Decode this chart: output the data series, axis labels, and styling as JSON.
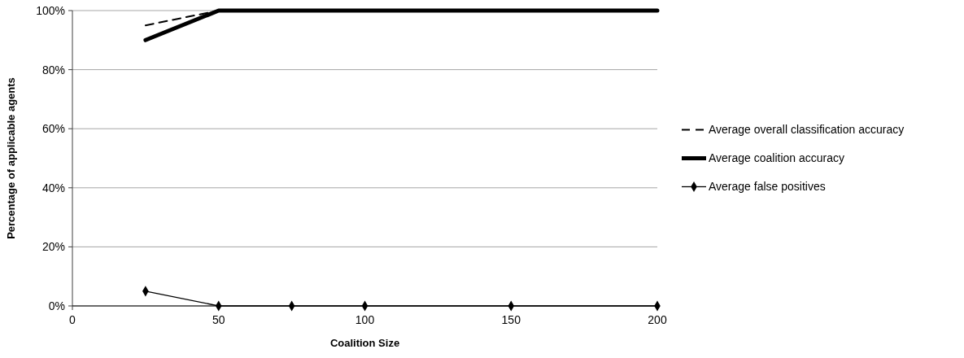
{
  "chart_data": {
    "type": "line",
    "xlabel": "Coalition Size",
    "ylabel": "Percentage of applicable agents",
    "x": [
      25,
      50,
      75,
      100,
      150,
      200
    ],
    "series": [
      {
        "name": "Average overall classification accuracy",
        "color": "#000000",
        "values": [
          95,
          100,
          100,
          100,
          100,
          100
        ],
        "line_style": "dashed",
        "marker": "none"
      },
      {
        "name": "Average coalition accuracy",
        "color": "#000000",
        "values": [
          90,
          100,
          100,
          100,
          100,
          100
        ],
        "line_style": "solid",
        "marker": "none"
      },
      {
        "name": "Average false positives",
        "color": "#000000",
        "values": [
          5,
          0,
          0,
          0,
          0,
          0
        ],
        "line_style": "solid",
        "marker": "diamond"
      }
    ],
    "xlim": [
      0,
      200
    ],
    "xticks": [
      0,
      50,
      100,
      150,
      200
    ],
    "ylim": [
      0,
      100
    ],
    "yticks": [
      {
        "value": 0,
        "label": "0%"
      },
      {
        "value": 20,
        "label": "20%"
      },
      {
        "value": 40,
        "label": "40%"
      },
      {
        "value": 60,
        "label": "60%"
      },
      {
        "value": 80,
        "label": "80%"
      },
      {
        "value": 100,
        "label": "100%"
      }
    ],
    "grid": "y",
    "legend": "right"
  }
}
